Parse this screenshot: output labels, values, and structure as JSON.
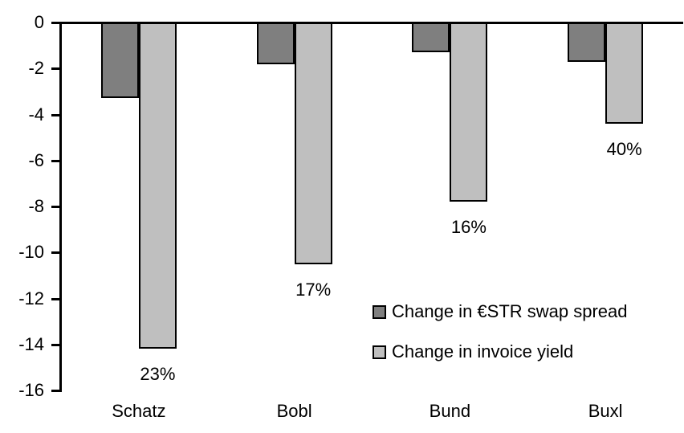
{
  "chart_data": {
    "type": "bar",
    "title": "",
    "xlabel": "",
    "ylabel": "",
    "categories": [
      "Schatz",
      "Bobl",
      "Bund",
      "Buxl"
    ],
    "series": [
      {
        "name": "Change in €STR swap spread",
        "color": "#7F7F7F",
        "values": [
          -3.3,
          -1.8,
          -1.3,
          -1.7
        ]
      },
      {
        "name": "Change in invoice yield",
        "color": "#BFBFBF",
        "values": [
          -14.2,
          -10.5,
          -7.8,
          -4.4
        ]
      }
    ],
    "data_labels": {
      "series_index": 1,
      "values": [
        "23%",
        "17%",
        "16%",
        "40%"
      ]
    },
    "ylim": [
      -16,
      0
    ],
    "yticks": [
      0,
      -2,
      -4,
      -6,
      -8,
      -10,
      -12,
      -14,
      -16
    ],
    "grid": false,
    "legend_position": "inside-right",
    "axis_color": "#000000",
    "bar_border_color": "#000000",
    "background_color": "#FFFFFF"
  }
}
